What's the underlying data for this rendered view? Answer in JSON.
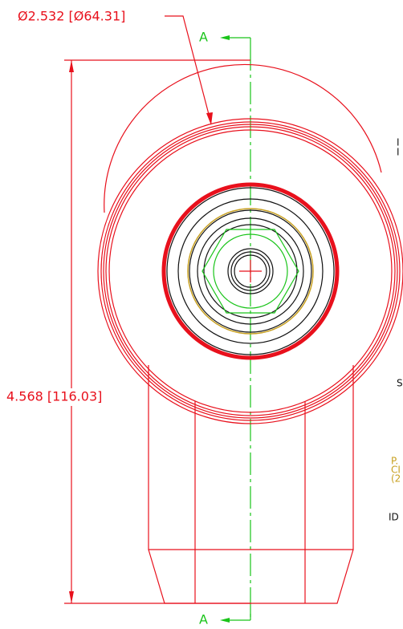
{
  "dimensions": {
    "diameter": "Ø2.532 [Ø64.31]",
    "height": "4.568 [116.03]"
  },
  "section_marks": [
    "A",
    "A"
  ],
  "notes": [
    "I",
    "I",
    "S",
    "P.",
    "CI",
    "(2",
    "ID"
  ]
}
